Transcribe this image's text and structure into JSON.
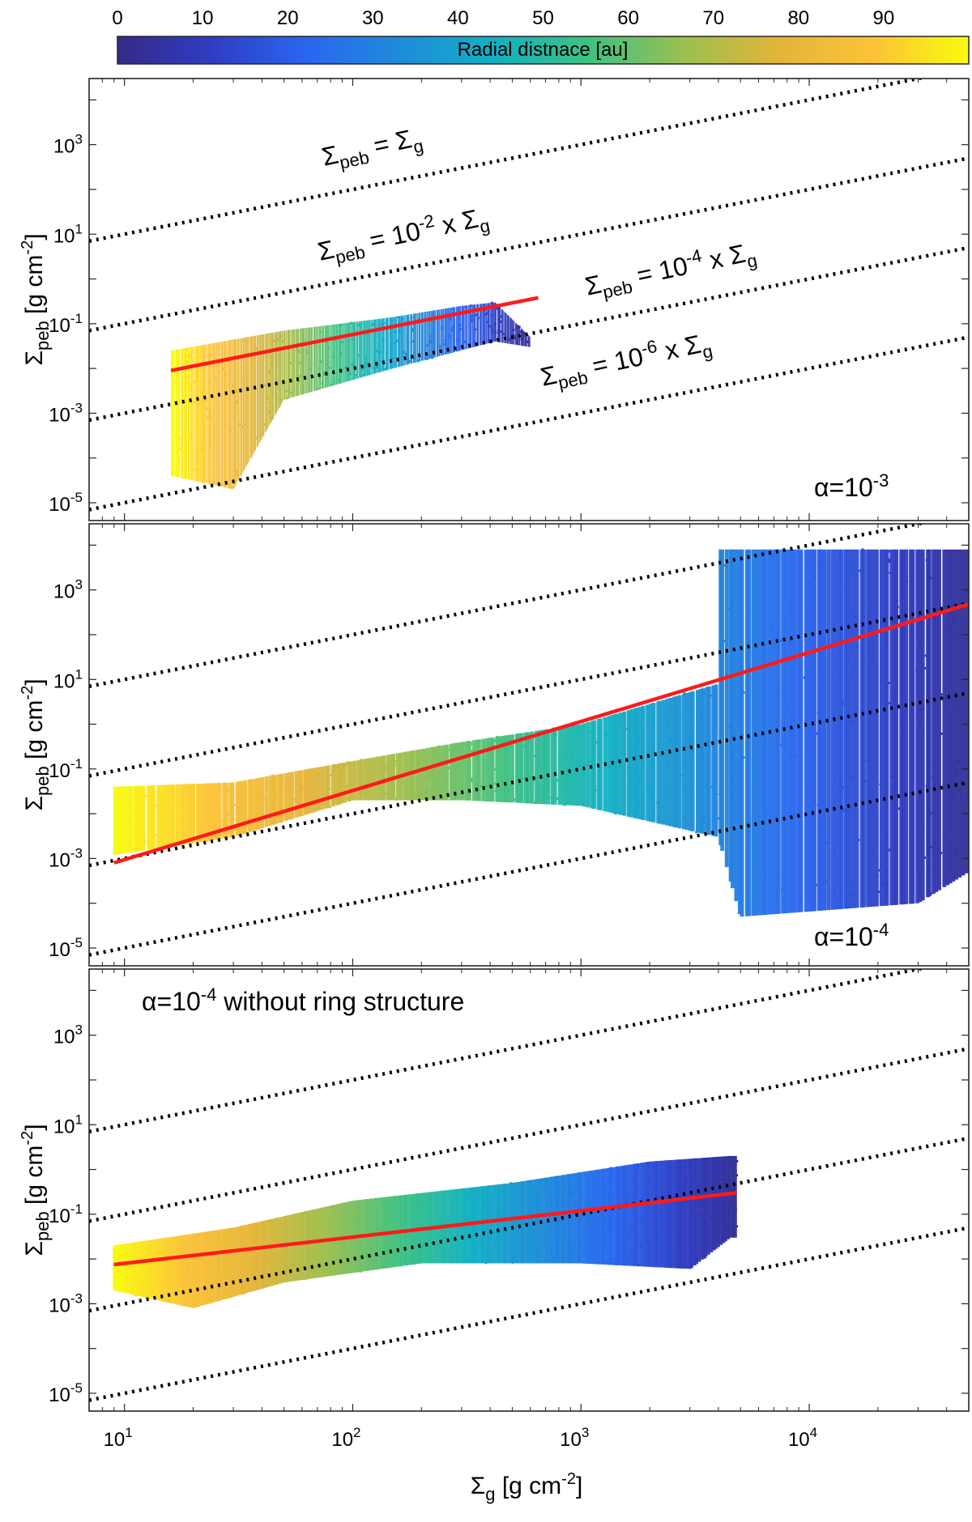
{
  "colorbar": {
    "label": "Radial distnace [au]",
    "ticks": [
      "0",
      "10",
      "20",
      "30",
      "40",
      "50",
      "60",
      "70",
      "80",
      "90"
    ],
    "range": [
      0,
      100
    ],
    "colors": [
      "#352a87",
      "#2f3dc2",
      "#2a66f0",
      "#1e8cd9",
      "#12b1c2",
      "#3fc281",
      "#9cbf4f",
      "#e3b53a",
      "#fcc338",
      "#f9fb0e"
    ]
  },
  "xaxis": {
    "label_main": "Σ",
    "label_sub": "g",
    "label_units": " [g cm",
    "label_exp": "-2",
    "label_close": "]",
    "tick_base": "10",
    "ticks": [
      {
        "value": 10,
        "exp": "1"
      },
      {
        "value": 100,
        "exp": "2"
      },
      {
        "value": 1000,
        "exp": "3"
      },
      {
        "value": 10000,
        "exp": "4"
      }
    ],
    "range": [
      7,
      50000
    ]
  },
  "yaxis": {
    "label_main": "Σ",
    "label_sub": "peb",
    "label_units": " [g cm",
    "label_exp": "-2",
    "label_close": "]",
    "tick_base": "10",
    "ticks": [
      {
        "value": 1000,
        "exp": "3"
      },
      {
        "value": 10,
        "exp": "1"
      },
      {
        "value": 0.1,
        "exp": "-1"
      },
      {
        "value": 0.001,
        "exp": "-3"
      },
      {
        "value": 1e-05,
        "exp": "-5"
      }
    ],
    "range": [
      4e-06,
      30000
    ]
  },
  "reference_lines": [
    {
      "name": "ratio-1",
      "ratio": 1,
      "label_main": "Σ",
      "label_sub": "peb",
      "label_mid": " = Σ",
      "label_mid_sub": "g",
      "label_exp": "",
      "label_tail": "",
      "label_tail_sub": ""
    },
    {
      "name": "ratio-1e-2",
      "ratio": 0.01,
      "label_main": "Σ",
      "label_sub": "peb",
      "label_mid": " = 10",
      "label_mid_sub": "",
      "label_exp": "-2",
      "label_tail": " x Σ",
      "label_tail_sub": "g"
    },
    {
      "name": "ratio-1e-4",
      "ratio": 0.0001,
      "label_main": "Σ",
      "label_sub": "peb",
      "label_mid": " = 10",
      "label_mid_sub": "",
      "label_exp": "-4",
      "label_tail": " x Σ",
      "label_tail_sub": "g"
    },
    {
      "name": "ratio-1e-6",
      "ratio": 1e-06,
      "label_main": "Σ",
      "label_sub": "peb",
      "label_mid": " = 10",
      "label_mid_sub": "",
      "label_exp": "-6",
      "label_tail": " x Σ",
      "label_tail_sub": "g"
    }
  ],
  "chart_data": [
    {
      "type": "scatter",
      "panel": "top",
      "annotation_prefix": "α=10",
      "annotation_exp": "-3",
      "annotation_suffix": "",
      "fit_line": {
        "color": "#ff1a1a",
        "x": [
          16,
          650
        ],
        "y": [
          0.009,
          0.38
        ]
      },
      "point_cloud": {
        "x_range": [
          16,
          600
        ],
        "upper_edge": [
          [
            16,
            0.025
          ],
          [
            50,
            0.07
          ],
          [
            150,
            0.14
          ],
          [
            300,
            0.25
          ],
          [
            420,
            0.3
          ],
          [
            600,
            0.05
          ]
        ],
        "lower_edge": [
          [
            16,
            4e-05
          ],
          [
            30,
            2e-05
          ],
          [
            50,
            0.002
          ],
          [
            150,
            0.01
          ],
          [
            420,
            0.04
          ],
          [
            600,
            0.03
          ]
        ],
        "drop_to": 0.0004
      }
    },
    {
      "type": "scatter",
      "panel": "middle",
      "annotation_prefix": "α=10",
      "annotation_exp": "-4",
      "annotation_suffix": "",
      "fit_line": {
        "color": "#ff1a1a",
        "x": [
          9,
          50000
        ],
        "y": [
          0.0008,
          480
        ]
      },
      "point_cloud": {
        "x_range": [
          9,
          50000
        ],
        "upper_edge": [
          [
            9,
            0.04
          ],
          [
            30,
            0.05
          ],
          [
            100,
            0.15
          ],
          [
            300,
            0.4
          ],
          [
            1000,
            1.0
          ],
          [
            4000,
            8.0
          ],
          [
            4000,
            8000
          ],
          [
            50000,
            8000
          ]
        ],
        "lower_edge": [
          [
            9,
            0.0012
          ],
          [
            30,
            0.003
          ],
          [
            100,
            0.02
          ],
          [
            300,
            0.02
          ],
          [
            1000,
            0.015
          ],
          [
            4000,
            0.003
          ],
          [
            5000,
            5e-05
          ],
          [
            30000,
            0.0001
          ],
          [
            50000,
            0.0005
          ]
        ]
      }
    },
    {
      "type": "scatter",
      "panel": "bottom",
      "annotation_prefix": "α=10",
      "annotation_exp": "-4",
      "annotation_suffix": " without ring structure",
      "fit_line": {
        "color": "#ff1a1a",
        "x": [
          9,
          4800
        ],
        "y": [
          0.0075,
          0.3
        ]
      },
      "point_cloud": {
        "x_range": [
          9,
          4800
        ],
        "upper_edge": [
          [
            9,
            0.02
          ],
          [
            30,
            0.05
          ],
          [
            100,
            0.2
          ],
          [
            500,
            0.5
          ],
          [
            2000,
            1.5
          ],
          [
            4500,
            2.0
          ]
        ],
        "lower_edge": [
          [
            9,
            0.002
          ],
          [
            20,
            0.0008
          ],
          [
            50,
            0.003
          ],
          [
            200,
            0.008
          ],
          [
            1000,
            0.008
          ],
          [
            3000,
            0.006
          ],
          [
            4500,
            0.03
          ]
        ]
      }
    }
  ]
}
